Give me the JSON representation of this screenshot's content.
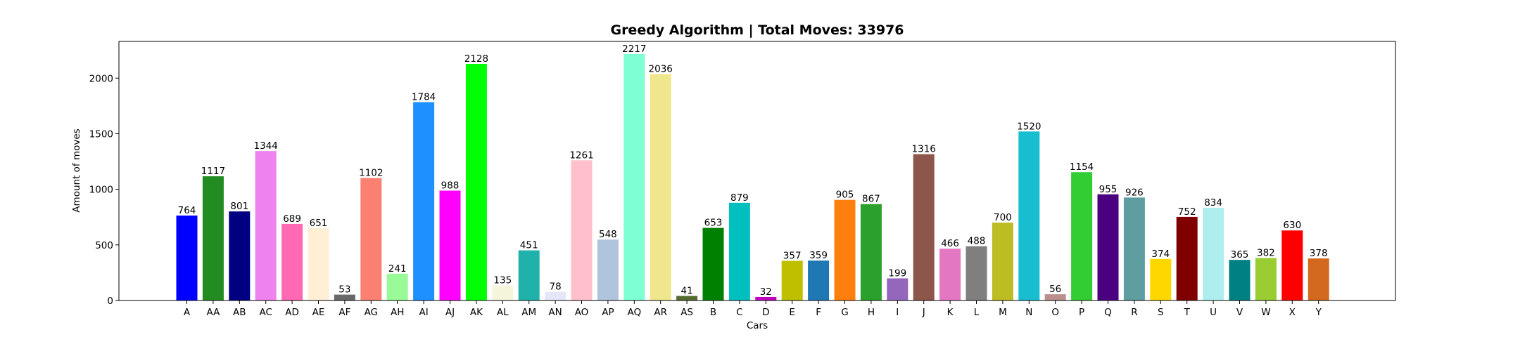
{
  "chart_data": {
    "type": "bar",
    "title": "Greedy Algorithm | Total Moves: 33976",
    "xlabel": "Cars",
    "ylabel": "Amount of moves",
    "ylim": [
      0,
      2330
    ],
    "yticks": [
      0,
      500,
      1000,
      1500,
      2000
    ],
    "grid": false,
    "categories": [
      "A",
      "AA",
      "AB",
      "AC",
      "AD",
      "AE",
      "AF",
      "AG",
      "AH",
      "AI",
      "AJ",
      "AK",
      "AL",
      "AM",
      "AN",
      "AO",
      "AP",
      "AQ",
      "AR",
      "AS",
      "B",
      "C",
      "D",
      "E",
      "F",
      "G",
      "H",
      "I",
      "J",
      "K",
      "L",
      "M",
      "N",
      "O",
      "P",
      "Q",
      "R",
      "S",
      "T",
      "U",
      "V",
      "W",
      "X",
      "Y"
    ],
    "values": [
      764,
      1117,
      801,
      1344,
      689,
      651,
      53,
      1102,
      241,
      1784,
      988,
      2128,
      135,
      451,
      78,
      1261,
      548,
      2217,
      2036,
      41,
      653,
      879,
      32,
      357,
      359,
      905,
      867,
      199,
      1316,
      466,
      488,
      700,
      1520,
      56,
      1154,
      955,
      926,
      374,
      752,
      834,
      365,
      382,
      630,
      378
    ],
    "colors": [
      "#0000ff",
      "#228b22",
      "#000080",
      "#ee82ee",
      "#ff69b4",
      "#ffefd5",
      "#696969",
      "#fa8072",
      "#98fb98",
      "#1e90ff",
      "#ff00ff",
      "#00ff00",
      "#f5f5dc",
      "#20b2aa",
      "#e6e6fa",
      "#ffc0cb",
      "#b0c4de",
      "#7fffd4",
      "#f0e68c",
      "#556b2f",
      "#008000",
      "#00bfbf",
      "#bf00bf",
      "#bfbf00",
      "#1f77b4",
      "#ff7f0e",
      "#2ca02c",
      "#9467bd",
      "#8c564b",
      "#e377c2",
      "#7f7f7f",
      "#bcbd22",
      "#17becf",
      "#bc8f8f",
      "#32cd32",
      "#4b0082",
      "#5f9ea0",
      "#ffd700",
      "#800000",
      "#afeeee",
      "#008080",
      "#9acd32",
      "#ff0000",
      "#d2691e"
    ]
  }
}
